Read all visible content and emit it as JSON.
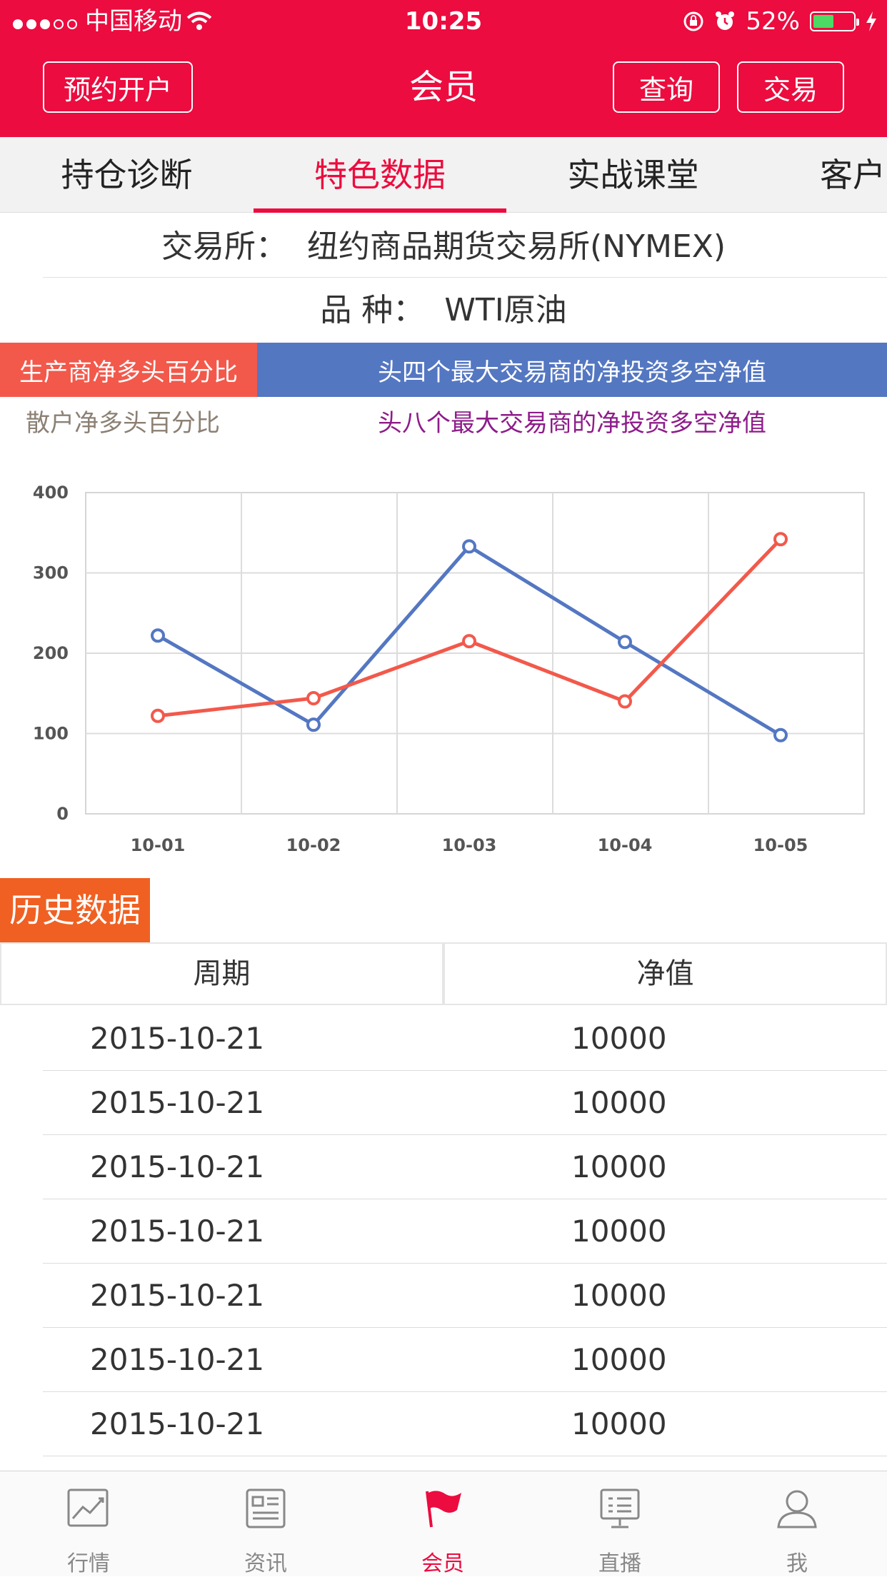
{
  "status": {
    "carrier": "中国移动",
    "time": "10:25",
    "battery": "52%",
    "battery_level": 0.52
  },
  "header": {
    "title": "会员",
    "left_button": "预约开户",
    "query_button": "查询",
    "trade_button": "交易"
  },
  "tabs": [
    {
      "label": "持仓诊断"
    },
    {
      "label": "特色数据",
      "active": true
    },
    {
      "label": "实战课堂"
    },
    {
      "label": "客户"
    }
  ],
  "info": {
    "exchange_label": "交易所：",
    "exchange_value": "纽约商品期货交易所(NYMEX)",
    "variety_label": "品 种：",
    "variety_value": "WTI原油"
  },
  "legend": {
    "producer": "生产商净多头百分比",
    "top4": "头四个最大交易商的净投资多空净值",
    "retail": "散户净多头百分比",
    "top8": "头八个最大交易商的净投资多空净值",
    "colors": {
      "producer": "#f2594b",
      "top4": "#5477c2",
      "retail": "#8c8074",
      "top8": "#8e1c8a"
    }
  },
  "chart_data": {
    "type": "line",
    "categories": [
      "10-01",
      "10-02",
      "10-03",
      "10-04",
      "10-05"
    ],
    "ylim": [
      0,
      400
    ],
    "yticks": [
      "400",
      "300",
      "200",
      "100",
      "0"
    ],
    "grid": true,
    "series": [
      {
        "name": "头四个最大交易商的净投资多空净值",
        "color": "#5477c2",
        "values": [
          222,
          111,
          333,
          214,
          98
        ]
      },
      {
        "name": "生产商净多头百分比",
        "color": "#f2594b",
        "values": [
          122,
          144,
          215,
          140,
          342
        ]
      }
    ]
  },
  "history": {
    "title": "历史数据",
    "col_period": "周期",
    "col_value": "净值",
    "rows": [
      {
        "date": "2015-10-21",
        "value": "10000"
      },
      {
        "date": "2015-10-21",
        "value": "10000"
      },
      {
        "date": "2015-10-21",
        "value": "10000"
      },
      {
        "date": "2015-10-21",
        "value": "10000"
      },
      {
        "date": "2015-10-21",
        "value": "10000"
      },
      {
        "date": "2015-10-21",
        "value": "10000"
      },
      {
        "date": "2015-10-21",
        "value": "10000"
      }
    ]
  },
  "tabbar": [
    {
      "label": "行情",
      "icon": "chart-icon"
    },
    {
      "label": "资讯",
      "icon": "news-icon"
    },
    {
      "label": "会员",
      "icon": "flag-icon",
      "active": true
    },
    {
      "label": "直播",
      "icon": "live-icon"
    },
    {
      "label": "我",
      "icon": "user-icon"
    }
  ]
}
